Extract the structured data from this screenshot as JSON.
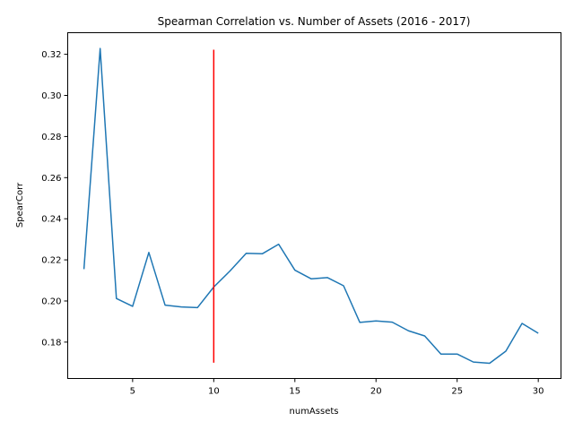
{
  "chart_data": {
    "type": "line",
    "title": "Spearman Correlation vs. Number of Assets (2016 - 2017)",
    "xlabel": "numAssets",
    "ylabel": "SpearCorr",
    "xlim": [
      1.0,
      31.4
    ],
    "ylim": [
      0.1623,
      0.3305
    ],
    "xticks": [
      5,
      10,
      15,
      20,
      25,
      30
    ],
    "xtick_labels": [
      "5",
      "10",
      "15",
      "20",
      "25",
      "30"
    ],
    "yticks": [
      0.18,
      0.2,
      0.22,
      0.24,
      0.26,
      0.28,
      0.3,
      0.32
    ],
    "ytick_labels": [
      "0.18",
      "0.20",
      "0.22",
      "0.24",
      "0.26",
      "0.28",
      "0.30",
      "0.32"
    ],
    "grid": false,
    "series": [
      {
        "color": "#1f77b4",
        "x": [
          2,
          3,
          4,
          5,
          6,
          7,
          8,
          9,
          10,
          11,
          12,
          13,
          14,
          15,
          16,
          17,
          18,
          19,
          20,
          21,
          22,
          23,
          24,
          25,
          26,
          27,
          28,
          29,
          30
        ],
        "y": [
          0.2155,
          0.3228,
          0.2012,
          0.1974,
          0.2236,
          0.198,
          0.1971,
          0.1968,
          0.2068,
          0.2146,
          0.2232,
          0.223,
          0.2276,
          0.215,
          0.2108,
          0.2114,
          0.2074,
          0.1896,
          0.1903,
          0.1897,
          0.1855,
          0.183,
          0.1742,
          0.1742,
          0.1703,
          0.1697,
          0.1756,
          0.1891,
          0.1843
        ]
      }
    ],
    "vlines": [
      {
        "x": 10,
        "ymin": 0.17,
        "ymax": 0.3222,
        "color": "#ff0000"
      }
    ]
  }
}
